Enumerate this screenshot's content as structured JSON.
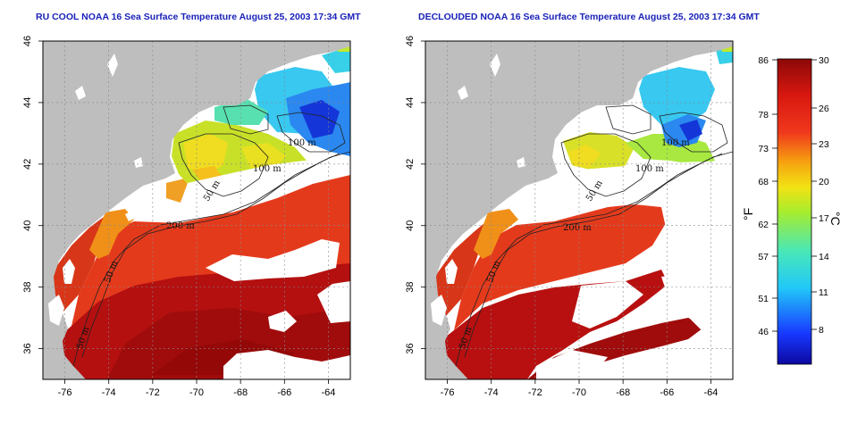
{
  "panels": [
    {
      "id": "left",
      "title": "RU COOL NOAA 16 Sea Surface Temperature August 25, 2003 17:34 GMT",
      "isobaths": [
        "100 m",
        "100 m",
        "50 m",
        "200 m",
        "50 m",
        "50 m"
      ]
    },
    {
      "id": "right",
      "title": "DECLOUDED NOAA 16 Sea Surface Temperature August 25, 2003 17:34 GMT",
      "isobaths": [
        "100 m",
        "100 m",
        "50 m",
        "200 m",
        "50 m",
        "50 m"
      ]
    }
  ],
  "axes": {
    "lon_range": [
      -77,
      -63
    ],
    "lat_range": [
      35,
      46
    ],
    "lon_ticks": [
      "-76",
      "-74",
      "-72",
      "-70",
      "-68",
      "-66",
      "-64"
    ],
    "lat_ticks": [
      "36",
      "38",
      "40",
      "42",
      "44",
      "46"
    ]
  },
  "colorbar": {
    "fahrenheit_ticks": [
      "86",
      "78",
      "73",
      "68",
      "62",
      "57",
      "51",
      "46"
    ],
    "celsius_ticks": [
      "30",
      "26",
      "23",
      "20",
      "17",
      "14",
      "11",
      "8"
    ],
    "fahrenheit_unit": "°F",
    "celsius_unit": "°C",
    "colors": {
      "hot": "#9c0a0a",
      "warm": "#e03a1c",
      "mid": "#f1c40f",
      "cool": "#50e0c0",
      "cold": "#1030d8"
    }
  },
  "colors": {
    "land": "#bebebe",
    "cloud": "#ffffff",
    "title": "#1a22b8"
  }
}
